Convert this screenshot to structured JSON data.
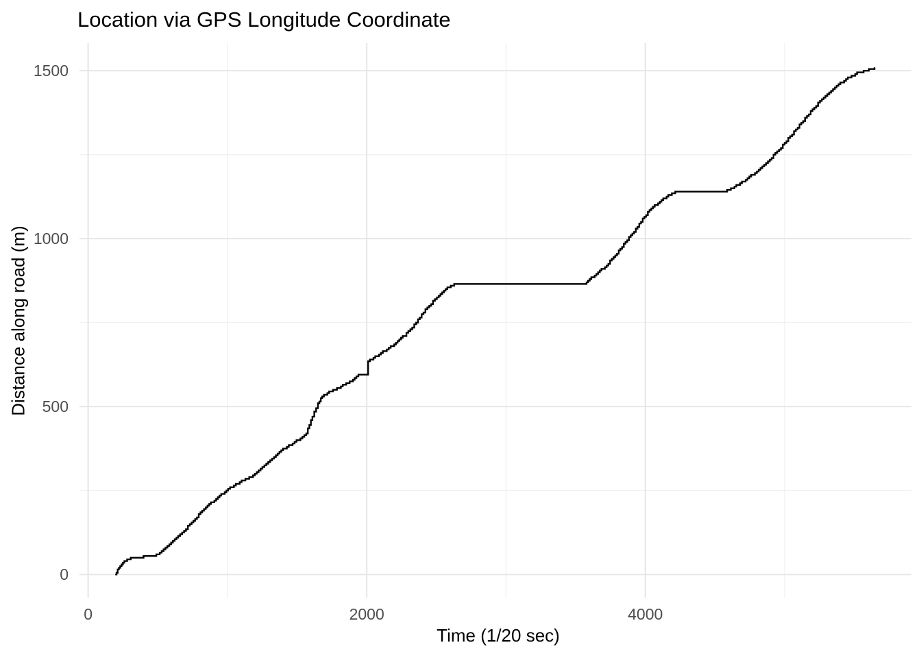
{
  "chart_data": {
    "type": "line",
    "title": "Location via GPS Longitude Coordinate",
    "xlabel": "Time (1/20 sec)",
    "ylabel": "Distance along road (m)",
    "x_ticks": [
      {
        "value": 0,
        "label": "0"
      },
      {
        "value": 2000,
        "label": "2000"
      },
      {
        "value": 4000,
        "label": "4000"
      }
    ],
    "x_minor_gridlines": [
      1000,
      3000,
      5000
    ],
    "y_ticks": [
      {
        "value": 0,
        "label": "0"
      },
      {
        "value": 500,
        "label": "500"
      },
      {
        "value": 1000,
        "label": "1000"
      },
      {
        "value": 1500,
        "label": "1500"
      }
    ],
    "y_minor_gridlines": [
      250,
      750,
      1250
    ],
    "xlim": [
      -62,
      5910
    ],
    "ylim": [
      -69,
      1582
    ],
    "grid": true,
    "legend_position": "none",
    "line_color": "#000000",
    "major_grid_color": "#e6e6e6",
    "minor_grid_color": "#efefef",
    "axis_text_color": "#4d4d4d",
    "title_color": "#000000",
    "background_color": "#ffffff",
    "line_style": "step",
    "step_quantum_m": 5,
    "points": [
      [
        195,
        0
      ],
      [
        212,
        14
      ],
      [
        230,
        26
      ],
      [
        250,
        36
      ],
      [
        280,
        45
      ],
      [
        318,
        51
      ],
      [
        465,
        54
      ],
      [
        514,
        63
      ],
      [
        583,
        90
      ],
      [
        647,
        114
      ],
      [
        730,
        149
      ],
      [
        794,
        178
      ],
      [
        857,
        204
      ],
      [
        931,
        230
      ],
      [
        1005,
        254
      ],
      [
        1088,
        276
      ],
      [
        1170,
        291
      ],
      [
        1251,
        319
      ],
      [
        1335,
        350
      ],
      [
        1399,
        374
      ],
      [
        1468,
        389
      ],
      [
        1566,
        420
      ],
      [
        1610,
        470
      ],
      [
        1650,
        510
      ],
      [
        1680,
        531
      ],
      [
        1730,
        543
      ],
      [
        1828,
        563
      ],
      [
        1877,
        573
      ],
      [
        1926,
        588
      ],
      [
        1940,
        595
      ],
      [
        2010,
        595
      ],
      [
        2010,
        636
      ],
      [
        2074,
        652
      ],
      [
        2172,
        678
      ],
      [
        2271,
        712
      ],
      [
        2355,
        750
      ],
      [
        2394,
        775
      ],
      [
        2517,
        832
      ],
      [
        2591,
        857
      ],
      [
        2640,
        865
      ],
      [
        3566,
        865
      ],
      [
        3624,
        887
      ],
      [
        3673,
        904
      ],
      [
        3722,
        920
      ],
      [
        3772,
        945
      ],
      [
        3821,
        969
      ],
      [
        3870,
        996
      ],
      [
        3919,
        1022
      ],
      [
        3969,
        1051
      ],
      [
        4018,
        1078
      ],
      [
        4067,
        1098
      ],
      [
        4116,
        1114
      ],
      [
        4165,
        1129
      ],
      [
        4215,
        1138
      ],
      [
        4230,
        1140
      ],
      [
        4574,
        1140
      ],
      [
        4640,
        1155
      ],
      [
        4720,
        1175
      ],
      [
        4800,
        1200
      ],
      [
        4880,
        1230
      ],
      [
        4960,
        1265
      ],
      [
        5040,
        1305
      ],
      [
        5120,
        1345
      ],
      [
        5200,
        1385
      ],
      [
        5280,
        1420
      ],
      [
        5360,
        1450
      ],
      [
        5440,
        1475
      ],
      [
        5520,
        1493
      ],
      [
        5578,
        1500
      ],
      [
        5645,
        1508
      ]
    ]
  }
}
